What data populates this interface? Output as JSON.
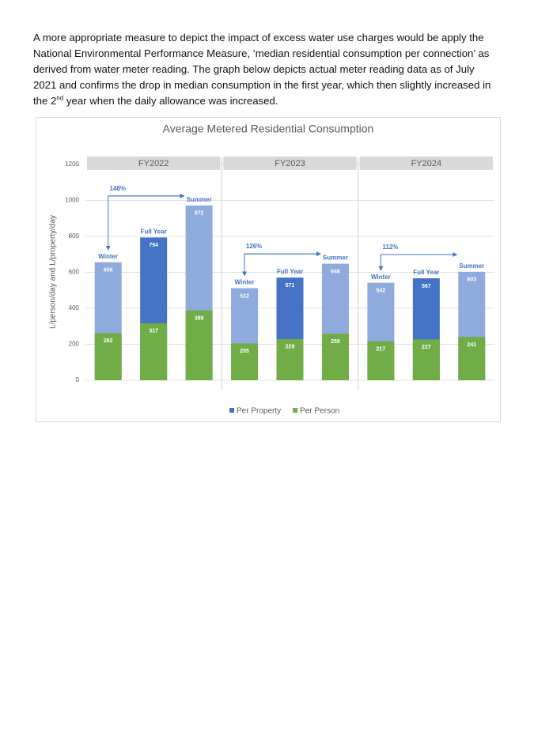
{
  "paragraph": [
    "A more appropriate measure to depict the impact of excess water use charges would be apply the National Environmental Performance Measure, ‘median residential consumption per connection’ as derived from water meter reading.  The graph below depicts actual meter reading data as of July 2021 and confirms the drop in median consumption in the first year, which then slightly increased in the 2",
    "nd",
    " year when the daily allowance was increased."
  ],
  "chart_data": {
    "type": "bar",
    "title": "Average Metered Residential Consumption",
    "y_label": "L/person/day and L/property/day",
    "groups": [
      "FY2022",
      "FY2023",
      "FY2024"
    ],
    "categories": [
      "Winter",
      "Full Year",
      "Summer",
      "Winter",
      "Full Year",
      "Summer",
      "Winter",
      "Full Year",
      "Summer"
    ],
    "series": [
      {
        "name": "Per Property",
        "color": "#4472c4",
        "bar_colors": [
          "#8faadc",
          "#4472c4",
          "#8faadc",
          "#8faadc",
          "#4472c4",
          "#8faadc",
          "#8faadc",
          "#4472c4",
          "#8faadc"
        ],
        "values": [
          656,
          794,
          972,
          512,
          571,
          648,
          542,
          567,
          603
        ]
      },
      {
        "name": "Per Person",
        "color": "#70ad47",
        "values": [
          262,
          317,
          389,
          205,
          229,
          259,
          217,
          227,
          241
        ]
      }
    ],
    "annotations": [
      "148%",
      "126%",
      "112%"
    ],
    "ylim": [
      0,
      1200
    ],
    "yticks": [
      0,
      200,
      400,
      600,
      800,
      1000,
      1200
    ],
    "grid": true,
    "legend": "bottom"
  }
}
